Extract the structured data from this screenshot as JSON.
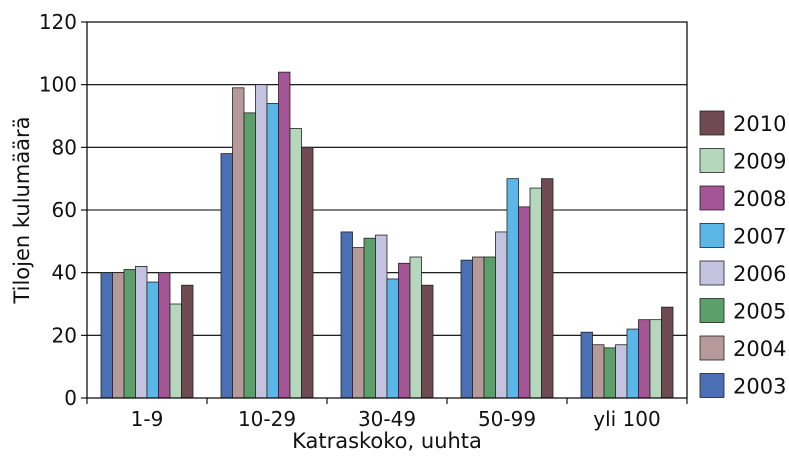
{
  "chart_data": {
    "type": "bar",
    "title": "",
    "xlabel": "Katraskoko, uuhta",
    "ylabel": "Tilojen kulumäärä",
    "ylim": [
      0,
      120
    ],
    "yticks": [
      0,
      20,
      40,
      60,
      80,
      100,
      120
    ],
    "grid": true,
    "legend_position": "right",
    "categories": [
      "1-9",
      "10-29",
      "30-49",
      "50-99",
      "yli 100"
    ],
    "series": [
      {
        "name": "2003",
        "color": "#4a6fb3",
        "values": [
          40,
          78,
          53,
          44,
          21
        ]
      },
      {
        "name": "2004",
        "color": "#b69a9a",
        "values": [
          40,
          99,
          48,
          45,
          17
        ]
      },
      {
        "name": "2005",
        "color": "#5ba06a",
        "values": [
          41,
          91,
          51,
          45,
          16
        ]
      },
      {
        "name": "2006",
        "color": "#c3c3e0",
        "values": [
          42,
          100,
          52,
          53,
          17
        ]
      },
      {
        "name": "2007",
        "color": "#5bb7e8",
        "values": [
          37,
          94,
          38,
          70,
          22
        ]
      },
      {
        "name": "2008",
        "color": "#a45596",
        "values": [
          40,
          104,
          43,
          61,
          25
        ]
      },
      {
        "name": "2009",
        "color": "#b5d8bd",
        "values": [
          30,
          86,
          45,
          67,
          25
        ]
      },
      {
        "name": "2010",
        "color": "#6f4a52",
        "values": [
          36,
          80,
          36,
          70,
          29
        ]
      }
    ]
  }
}
